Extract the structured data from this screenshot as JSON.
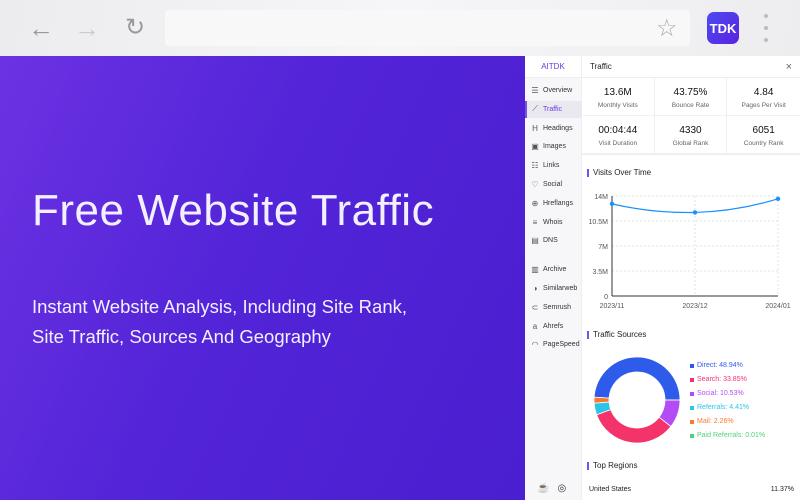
{
  "browser": {
    "back_icon": "arrow-left",
    "forward_icon": "arrow-right",
    "reload_icon": "reload",
    "star_icon": "star",
    "extension_label": "TDK",
    "menu_icon": "vertical-dots"
  },
  "hero": {
    "title": "Free Website Traffic",
    "subtitle_line1": "Instant Website Analysis, Including Site Rank,",
    "subtitle_line2": "Site Traffic, Sources And Geography"
  },
  "sidebar": {
    "brand": "AITDK",
    "items": [
      {
        "label": "Overview",
        "icon": "☰"
      },
      {
        "label": "Traffic",
        "icon": "⟋",
        "active": true
      },
      {
        "label": "Headings",
        "icon": "H"
      },
      {
        "label": "Images",
        "icon": "▣"
      },
      {
        "label": "Links",
        "icon": "☷"
      },
      {
        "label": "Social",
        "icon": "♡"
      },
      {
        "label": "Hreflangs",
        "icon": "⊕"
      },
      {
        "label": "Whois",
        "icon": "≡"
      },
      {
        "label": "DNS",
        "icon": "▤"
      },
      {
        "label": "Archive",
        "icon": "▥"
      },
      {
        "label": "Similarweb",
        "icon": "◑"
      },
      {
        "label": "Semrush",
        "icon": "⊂"
      },
      {
        "label": "Ahrefs",
        "icon": "a"
      },
      {
        "label": "PageSpeed",
        "icon": "◠"
      }
    ],
    "footer_icons": [
      "coffee-icon",
      "settings-icon"
    ]
  },
  "panel": {
    "title": "Traffic",
    "close": "×",
    "stats": [
      {
        "value": "13.6M",
        "label": "Monthly Visits"
      },
      {
        "value": "43.75%",
        "label": "Bounce Rate"
      },
      {
        "value": "4.84",
        "label": "Pages Per Visit"
      },
      {
        "value": "00:04:44",
        "label": "Visit Duration"
      },
      {
        "value": "4330",
        "label": "Global Rank"
      },
      {
        "value": "6051",
        "label": "Country Rank"
      }
    ],
    "visits_title": "Visits Over Time",
    "sources_title": "Traffic Sources",
    "regions_title": "Top Regions",
    "regions": [
      {
        "name": "United States",
        "share": "11.37%"
      }
    ]
  },
  "chart_data": [
    {
      "type": "line",
      "categories": [
        "2023/11",
        "2023/12",
        "2024/01"
      ],
      "values": [
        12.9,
        11.7,
        13.6
      ],
      "unit": "M",
      "ylim": [
        0,
        14
      ],
      "yticks": [
        "0",
        "3.5M",
        "7M",
        "10.5M",
        "14M"
      ],
      "grid": true,
      "color": "#1890ff"
    },
    {
      "type": "pie",
      "donut": true,
      "slices": [
        {
          "label": "Direct: 48.94%",
          "value": 48.94,
          "color": "#2f5bea"
        },
        {
          "label": "Search: 33.85%",
          "value": 33.85,
          "color": "#f5336b"
        },
        {
          "label": "Social: 10.53%",
          "value": 10.53,
          "color": "#b44cf5"
        },
        {
          "label": "Referrals: 4.41%",
          "value": 4.41,
          "color": "#2ac6ea"
        },
        {
          "label": "Mail: 2.26%",
          "value": 2.26,
          "color": "#fa7a2c"
        },
        {
          "label": "Paid Referrals: 0.01%",
          "value": 0.01,
          "color": "#4fd17a"
        }
      ],
      "legend": "right"
    }
  ]
}
